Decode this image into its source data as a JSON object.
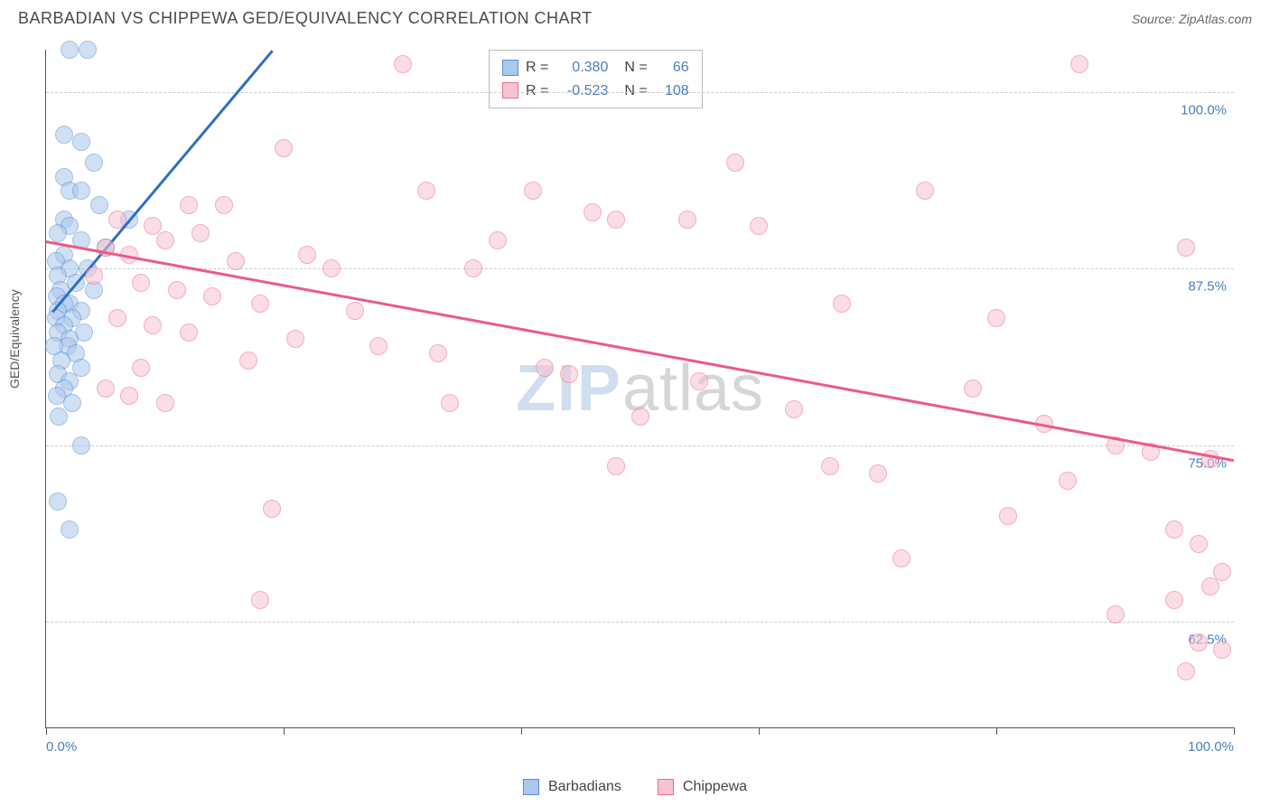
{
  "header": {
    "title": "BARBADIAN VS CHIPPEWA GED/EQUIVALENCY CORRELATION CHART",
    "source": "Source: ZipAtlas.com"
  },
  "chart": {
    "type": "scatter",
    "ylabel": "GED/Equivalency",
    "background_color": "#ffffff",
    "grid_color": "#cccccc",
    "axis_color": "#555555",
    "marker_radius": 9,
    "xlim": [
      0,
      100
    ],
    "ylim": [
      55,
      103
    ],
    "xticks": [
      0,
      20,
      40,
      60,
      80,
      100
    ],
    "xtick_labels": {
      "0": "0.0%",
      "100": "100.0%"
    },
    "yticks": [
      62.5,
      75.0,
      87.5,
      100.0
    ],
    "ytick_labels": [
      "62.5%",
      "75.0%",
      "87.5%",
      "100.0%"
    ],
    "watermark": {
      "part1": "ZIP",
      "part2": "atlas"
    },
    "series": [
      {
        "name": "Barbadians",
        "fill_color": "#a9c8ec",
        "stroke_color": "#5a8fd0",
        "trend": {
          "x1": 0.5,
          "y1": 84.5,
          "x2": 19,
          "y2": 103,
          "color": "#2e6fc0"
        },
        "stats": {
          "R": "0.380",
          "N": "66"
        },
        "points": [
          [
            2,
            103
          ],
          [
            3.5,
            103
          ],
          [
            1.5,
            97
          ],
          [
            3,
            96.5
          ],
          [
            4,
            95
          ],
          [
            1.5,
            94
          ],
          [
            2,
            93
          ],
          [
            3,
            93
          ],
          [
            4.5,
            92
          ],
          [
            1.5,
            91
          ],
          [
            7,
            91
          ],
          [
            2,
            90.5
          ],
          [
            1,
            90
          ],
          [
            3,
            89.5
          ],
          [
            5,
            89
          ],
          [
            1.5,
            88.5
          ],
          [
            0.8,
            88
          ],
          [
            2,
            87.5
          ],
          [
            3.5,
            87.5
          ],
          [
            1,
            87
          ],
          [
            2.5,
            86.5
          ],
          [
            4,
            86
          ],
          [
            1.2,
            86
          ],
          [
            0.9,
            85.5
          ],
          [
            2,
            85
          ],
          [
            1.5,
            85
          ],
          [
            3,
            84.5
          ],
          [
            1,
            84.5
          ],
          [
            2.2,
            84
          ],
          [
            0.8,
            84
          ],
          [
            1.5,
            83.5
          ],
          [
            3.2,
            83
          ],
          [
            1,
            83
          ],
          [
            2,
            82.5
          ],
          [
            1.8,
            82
          ],
          [
            0.7,
            82
          ],
          [
            2.5,
            81.5
          ],
          [
            1.3,
            81
          ],
          [
            3,
            80.5
          ],
          [
            1,
            80
          ],
          [
            2,
            79.5
          ],
          [
            1.5,
            79
          ],
          [
            0.9,
            78.5
          ],
          [
            2.2,
            78
          ],
          [
            1.1,
            77
          ],
          [
            3,
            75
          ],
          [
            1,
            71
          ],
          [
            2,
            69
          ]
        ]
      },
      {
        "name": "Chippewa",
        "fill_color": "#f8c3d0",
        "stroke_color": "#ec6b8f",
        "trend": {
          "x1": 0,
          "y1": 89.5,
          "x2": 100,
          "y2": 74,
          "color": "#ec5a85"
        },
        "stats": {
          "R": "-0.523",
          "N": "108"
        },
        "points": [
          [
            30,
            102
          ],
          [
            87,
            102
          ],
          [
            20,
            96
          ],
          [
            58,
            95
          ],
          [
            32,
            93
          ],
          [
            41,
            93
          ],
          [
            74,
            93
          ],
          [
            12,
            92
          ],
          [
            15,
            92
          ],
          [
            46,
            91.5
          ],
          [
            48,
            91
          ],
          [
            54,
            91
          ],
          [
            6,
            91
          ],
          [
            9,
            90.5
          ],
          [
            60,
            90.5
          ],
          [
            13,
            90
          ],
          [
            10,
            89.5
          ],
          [
            38,
            89.5
          ],
          [
            96,
            89
          ],
          [
            5,
            89
          ],
          [
            7,
            88.5
          ],
          [
            22,
            88.5
          ],
          [
            16,
            88
          ],
          [
            24,
            87.5
          ],
          [
            36,
            87.5
          ],
          [
            4,
            87
          ],
          [
            8,
            86.5
          ],
          [
            11,
            86
          ],
          [
            14,
            85.5
          ],
          [
            18,
            85
          ],
          [
            67,
            85
          ],
          [
            26,
            84.5
          ],
          [
            80,
            84
          ],
          [
            6,
            84
          ],
          [
            9,
            83.5
          ],
          [
            12,
            83
          ],
          [
            21,
            82.5
          ],
          [
            28,
            82
          ],
          [
            33,
            81.5
          ],
          [
            17,
            81
          ],
          [
            42,
            80.5
          ],
          [
            8,
            80.5
          ],
          [
            44,
            80
          ],
          [
            55,
            79.5
          ],
          [
            78,
            79
          ],
          [
            5,
            79
          ],
          [
            7,
            78.5
          ],
          [
            34,
            78
          ],
          [
            63,
            77.5
          ],
          [
            10,
            78
          ],
          [
            50,
            77
          ],
          [
            84,
            76.5
          ],
          [
            90,
            75
          ],
          [
            93,
            74.5
          ],
          [
            98,
            74
          ],
          [
            48,
            73.5
          ],
          [
            66,
            73.5
          ],
          [
            70,
            73
          ],
          [
            86,
            72.5
          ],
          [
            19,
            70.5
          ],
          [
            81,
            70
          ],
          [
            95,
            69
          ],
          [
            97,
            68
          ],
          [
            72,
            67
          ],
          [
            99,
            66
          ],
          [
            90,
            63
          ],
          [
            98,
            65
          ],
          [
            95,
            64
          ],
          [
            18,
            64
          ],
          [
            97,
            61
          ],
          [
            99,
            60.5
          ],
          [
            96,
            59
          ]
        ]
      }
    ]
  },
  "legend": {
    "items": [
      {
        "label": "Barbadians",
        "fill": "#a9c8ec",
        "stroke": "#5a8fd0"
      },
      {
        "label": "Chippewa",
        "fill": "#f8c3d0",
        "stroke": "#ec6b8f"
      }
    ]
  }
}
